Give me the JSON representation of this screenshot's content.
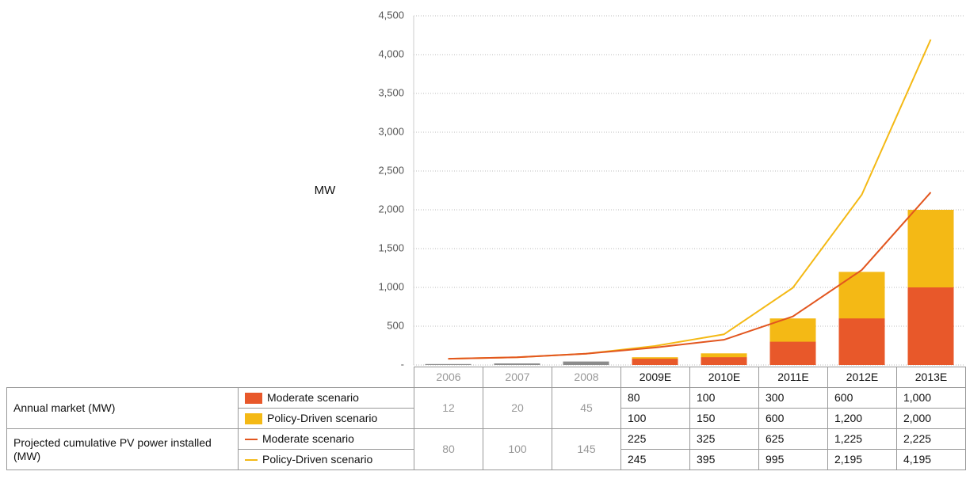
{
  "chart_data": {
    "type": "combo",
    "ylabel": "MW",
    "categories": [
      "2006",
      "2007",
      "2008",
      "2009E",
      "2010E",
      "2011E",
      "2012E",
      "2013E"
    ],
    "ylim": [
      0,
      4500
    ],
    "yticks": [
      {
        "value": 0,
        "label": "-"
      },
      500,
      {
        "value": 1000,
        "label": "1,000"
      },
      {
        "value": 1500,
        "label": "1,500"
      },
      {
        "value": 2000,
        "label": "2,000"
      },
      {
        "value": 2500,
        "label": "2,500"
      },
      {
        "value": 3000,
        "label": "3,000"
      },
      {
        "value": 3500,
        "label": "3,500"
      },
      {
        "value": 4000,
        "label": "4,000"
      },
      {
        "value": 4500,
        "label": "4,500"
      }
    ],
    "grid": true,
    "actual_annual": {
      "color": "#8c8c8c",
      "values": [
        12,
        20,
        45,
        null,
        null,
        null,
        null,
        null
      ]
    },
    "actual_cumulative": {
      "values": [
        80,
        100,
        145,
        null,
        null,
        null,
        null,
        null
      ]
    },
    "series": [
      {
        "name": "Moderate scenario",
        "type": "bar",
        "color": "#e8582a",
        "values": [
          null,
          null,
          null,
          80,
          100,
          300,
          600,
          1000
        ],
        "value_labels": [
          null,
          null,
          null,
          "80",
          "100",
          "300",
          "600",
          "1,000"
        ]
      },
      {
        "name": "Policy-Driven scenario",
        "type": "bar",
        "color": "#f4b915",
        "values": [
          null,
          null,
          null,
          100,
          150,
          600,
          1200,
          2000
        ],
        "value_labels": [
          null,
          null,
          null,
          "100",
          "150",
          "600",
          "1,200",
          "2,000"
        ]
      },
      {
        "name": "Moderate scenario",
        "type": "line",
        "color": "#e2561f",
        "values": [
          null,
          null,
          null,
          225,
          325,
          625,
          1225,
          2225
        ],
        "value_labels": [
          null,
          null,
          null,
          "225",
          "325",
          "625",
          "1,225",
          "2,225"
        ]
      },
      {
        "name": "Policy-Driven scenario",
        "type": "line",
        "color": "#f4b915",
        "values": [
          null,
          null,
          null,
          245,
          395,
          995,
          2195,
          4195
        ],
        "value_labels": [
          null,
          null,
          null,
          "245",
          "395",
          "995",
          "2,195",
          "4,195"
        ]
      }
    ]
  },
  "table": {
    "row_groups": [
      "Annual market (MW)",
      "Projected cumulative PV power installed (MW)"
    ]
  }
}
